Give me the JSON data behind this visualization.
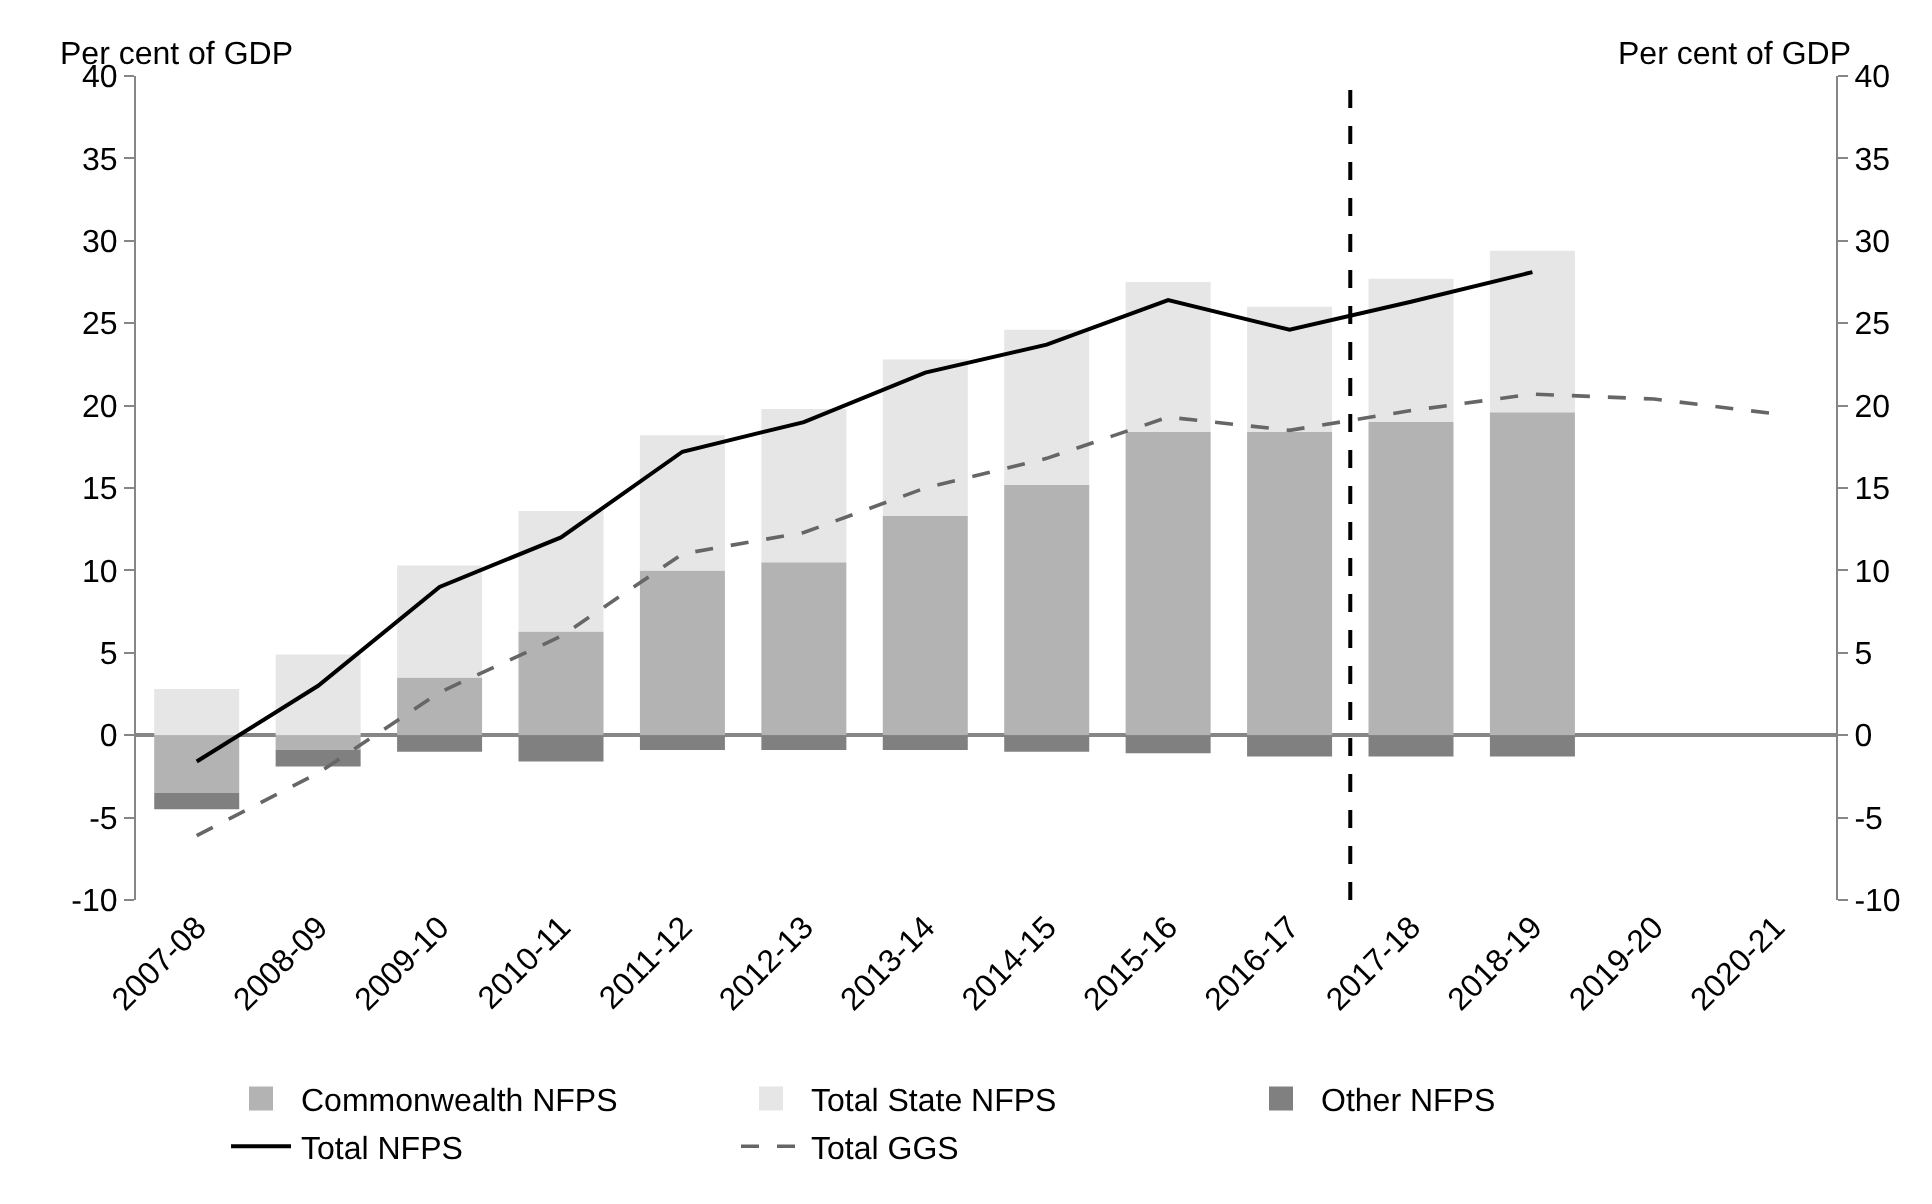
{
  "chart_data": {
    "type": "bar",
    "stacked": true,
    "ylabel": "Per cent of GDP",
    "y2label": "Per cent of GDP",
    "categories": [
      "2007-08",
      "2008-09",
      "2009-10",
      "2010-11",
      "2011-12",
      "2012-13",
      "2013-14",
      "2014-15",
      "2015-16",
      "2016-17",
      "2017-18",
      "2018-19",
      "2019-20",
      "2020-21"
    ],
    "series": [
      {
        "name": "Commonwealth NFPS",
        "color": "#b3b3b3",
        "values": [
          -3.5,
          -0.9,
          3.5,
          6.3,
          10.0,
          10.5,
          13.3,
          15.2,
          18.4,
          18.4,
          19.0,
          19.6,
          null,
          null
        ]
      },
      {
        "name": "Total State NFPS",
        "color": "#e6e6e6",
        "values": [
          2.8,
          4.9,
          6.8,
          7.3,
          8.2,
          9.3,
          9.5,
          9.4,
          9.1,
          7.6,
          8.7,
          9.8,
          null,
          null
        ]
      },
      {
        "name": "Other NFPS",
        "color": "#808080",
        "values": [
          -1.0,
          -1.0,
          -1.0,
          -1.6,
          -0.9,
          -0.9,
          -0.9,
          -1.0,
          -1.1,
          -1.3,
          -1.3,
          -1.3,
          null,
          null
        ]
      },
      {
        "name": "Total NFPS",
        "type": "line",
        "color": "#000000",
        "line_style": "solid",
        "values": [
          -1.6,
          3.0,
          9.0,
          12.0,
          17.2,
          19.0,
          22.0,
          23.7,
          26.4,
          24.6,
          26.3,
          28.1,
          null,
          null
        ]
      },
      {
        "name": "Total GGS",
        "type": "line",
        "color": "#666666",
        "line_style": "dashed",
        "values": [
          -6.1,
          -2.3,
          2.6,
          6.0,
          11.0,
          12.3,
          15.0,
          16.8,
          19.3,
          18.5,
          19.7,
          20.7,
          20.4,
          19.5
        ]
      }
    ],
    "ylim": [
      -10,
      40
    ],
    "yticks": [
      -10,
      -5,
      0,
      5,
      10,
      15,
      20,
      25,
      30,
      35,
      40
    ],
    "y2lim": [
      -10,
      40
    ],
    "y2ticks": [
      -10,
      -5,
      0,
      5,
      10,
      15,
      20,
      25,
      30,
      35,
      40
    ],
    "ref_lines": [
      {
        "axis": "x",
        "value": "2017-18",
        "color": "#000000",
        "line_style": "dashed"
      }
    ],
    "legend": "bottom",
    "marker": "none"
  }
}
